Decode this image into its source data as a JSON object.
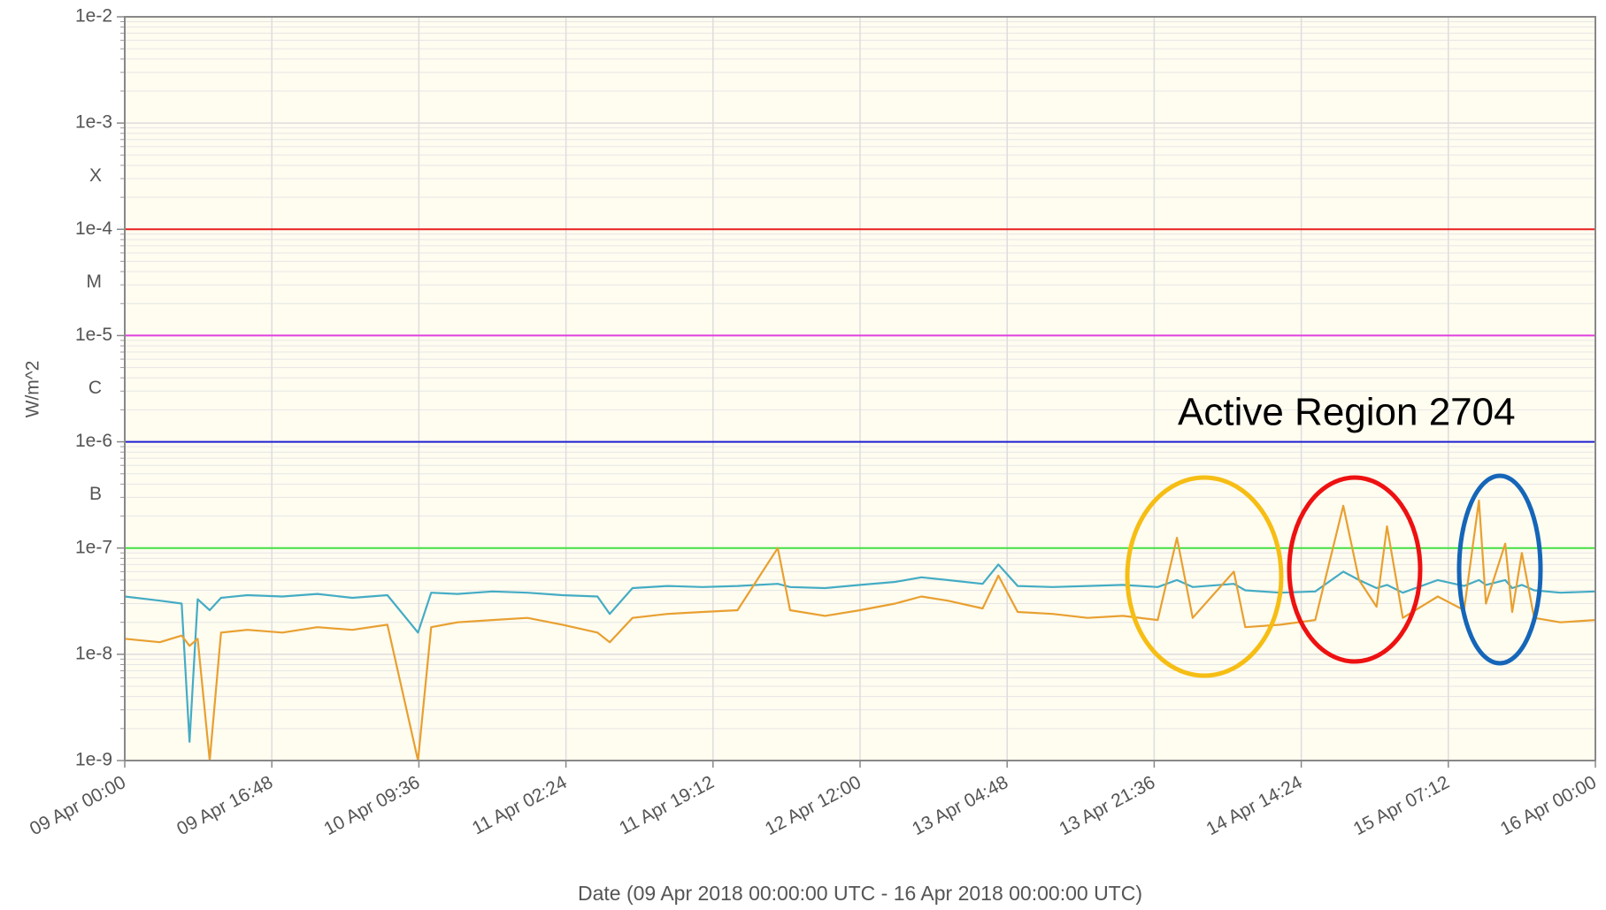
{
  "chart_data": {
    "type": "line",
    "ylabel": "W/m^2",
    "xlabel": "Date (09 Apr 2018 00:00:00 UTC - 16 Apr 2018 00:00:00 UTC)",
    "annotation": "Active Region 2704",
    "log_scale": true,
    "grid": true,
    "background": "#fffcf0",
    "xlim": [
      "2018-04-09T00:00Z",
      "2018-04-16T00:00Z"
    ],
    "xticks": [
      {
        "value": "2018-04-09T00:00Z",
        "label": "09 Apr 00:00"
      },
      {
        "value": "2018-04-09T16:48Z",
        "label": "09 Apr 16:48"
      },
      {
        "value": "2018-04-10T09:36Z",
        "label": "10 Apr 09:36"
      },
      {
        "value": "2018-04-11T02:24Z",
        "label": "11 Apr 02:24"
      },
      {
        "value": "2018-04-11T19:12Z",
        "label": "11 Apr 19:12"
      },
      {
        "value": "2018-04-12T12:00Z",
        "label": "12 Apr 12:00"
      },
      {
        "value": "2018-04-13T04:48Z",
        "label": "13 Apr 04:48"
      },
      {
        "value": "2018-04-13T21:36Z",
        "label": "13 Apr 21:36"
      },
      {
        "value": "2018-04-14T14:24Z",
        "label": "14 Apr 14:24"
      },
      {
        "value": "2018-04-15T07:12Z",
        "label": "15 Apr 07:12"
      },
      {
        "value": "2018-04-16T00:00Z",
        "label": "16 Apr 00:00"
      }
    ],
    "ylim": [
      1e-09,
      0.01
    ],
    "yticks": [
      {
        "value": 1e-09,
        "label": "1e-9"
      },
      {
        "value": 1e-08,
        "label": "1e-8"
      },
      {
        "value": 1e-07,
        "label": "1e-7"
      },
      {
        "value": 1e-06,
        "label": "1e-6"
      },
      {
        "value": 1e-05,
        "label": "1e-5"
      },
      {
        "value": 0.0001,
        "label": "1e-4"
      },
      {
        "value": 0.001,
        "label": "1e-3"
      },
      {
        "value": 0.01,
        "label": "1e-2"
      }
    ],
    "class_labels": [
      {
        "value": 3.16e-07,
        "label": "B"
      },
      {
        "value": 3.16e-06,
        "label": "C"
      },
      {
        "value": 3.16e-05,
        "label": "M"
      },
      {
        "value": 0.000316,
        "label": "X"
      }
    ],
    "thresholds": [
      {
        "value": 1e-07,
        "color": "#44e044"
      },
      {
        "value": 1e-06,
        "color": "#2020d0"
      },
      {
        "value": 1e-05,
        "color": "#e040e0"
      },
      {
        "value": 0.0001,
        "color": "#e82020"
      }
    ],
    "x": [
      "2018-04-09T00:00Z",
      "2018-04-09T04:00Z",
      "2018-04-09T06:30Z",
      "2018-04-09T07:24Z",
      "2018-04-09T08:20Z",
      "2018-04-09T09:42Z",
      "2018-04-09T11:00Z",
      "2018-04-09T14:00Z",
      "2018-04-09T18:00Z",
      "2018-04-09T22:00Z",
      "2018-04-10T02:00Z",
      "2018-04-10T06:00Z",
      "2018-04-10T09:30Z",
      "2018-04-10T11:00Z",
      "2018-04-10T14:00Z",
      "2018-04-10T18:00Z",
      "2018-04-10T22:00Z",
      "2018-04-11T02:00Z",
      "2018-04-11T06:00Z",
      "2018-04-11T07:24Z",
      "2018-04-11T10:00Z",
      "2018-04-11T14:00Z",
      "2018-04-11T18:00Z",
      "2018-04-11T22:00Z",
      "2018-04-12T02:36Z",
      "2018-04-12T04:00Z",
      "2018-04-12T08:00Z",
      "2018-04-12T12:00Z",
      "2018-04-12T16:00Z",
      "2018-04-12T19:00Z",
      "2018-04-12T22:00Z",
      "2018-04-13T02:00Z",
      "2018-04-13T03:48Z",
      "2018-04-13T06:00Z",
      "2018-04-13T10:00Z",
      "2018-04-13T14:00Z",
      "2018-04-13T18:00Z",
      "2018-04-13T22:00Z",
      "2018-04-14T00:12Z",
      "2018-04-14T02:00Z",
      "2018-04-14T06:42Z",
      "2018-04-14T08:00Z",
      "2018-04-14T12:00Z",
      "2018-04-14T16:00Z",
      "2018-04-14T19:12Z",
      "2018-04-14T21:00Z",
      "2018-04-14T23:00Z",
      "2018-04-15T00:12Z",
      "2018-04-15T02:00Z",
      "2018-04-15T06:00Z",
      "2018-04-15T09:00Z",
      "2018-04-15T10:42Z",
      "2018-04-15T11:30Z",
      "2018-04-15T13:42Z",
      "2018-04-15T14:30Z",
      "2018-04-15T15:36Z",
      "2018-04-15T17:00Z",
      "2018-04-15T20:00Z",
      "2018-04-16T00:00Z"
    ],
    "series": [
      {
        "color": "#44acc4",
        "values": [
          3.5e-08,
          3.2e-08,
          3e-08,
          1.5e-09,
          3.3e-08,
          2.6e-08,
          3.4e-08,
          3.6e-08,
          3.5e-08,
          3.7e-08,
          3.4e-08,
          3.6e-08,
          1.6e-08,
          3.8e-08,
          3.7e-08,
          3.9e-08,
          3.8e-08,
          3.6e-08,
          3.5e-08,
          2.4e-08,
          4.2e-08,
          4.4e-08,
          4.3e-08,
          4.4e-08,
          4.6e-08,
          4.3e-08,
          4.2e-08,
          4.5e-08,
          4.8e-08,
          5.3e-08,
          5e-08,
          4.6e-08,
          7e-08,
          4.4e-08,
          4.3e-08,
          4.4e-08,
          4.5e-08,
          4.3e-08,
          5e-08,
          4.3e-08,
          4.6e-08,
          4e-08,
          3.8e-08,
          3.9e-08,
          6e-08,
          5e-08,
          4.2e-08,
          4.5e-08,
          3.8e-08,
          5e-08,
          4.4e-08,
          5e-08,
          4.5e-08,
          5e-08,
          4.2e-08,
          4.5e-08,
          4e-08,
          3.8e-08,
          3.9e-08
        ]
      },
      {
        "color": "#e8a030",
        "values": [
          1.4e-08,
          1.3e-08,
          1.5e-08,
          1.2e-08,
          1.4e-08,
          1e-09,
          1.6e-08,
          1.7e-08,
          1.6e-08,
          1.8e-08,
          1.7e-08,
          1.9e-08,
          1e-09,
          1.8e-08,
          2e-08,
          2.1e-08,
          2.2e-08,
          1.9e-08,
          1.6e-08,
          1.3e-08,
          2.2e-08,
          2.4e-08,
          2.5e-08,
          2.6e-08,
          1e-07,
          2.6e-08,
          2.3e-08,
          2.6e-08,
          3e-08,
          3.5e-08,
          3.2e-08,
          2.7e-08,
          5.5e-08,
          2.5e-08,
          2.4e-08,
          2.2e-08,
          2.3e-08,
          2.1e-08,
          1.25e-07,
          2.2e-08,
          6e-08,
          1.8e-08,
          1.9e-08,
          2.1e-08,
          2.5e-07,
          5e-08,
          2.8e-08,
          1.6e-07,
          2.2e-08,
          3.5e-08,
          2.6e-08,
          2.8e-07,
          3e-08,
          1.1e-07,
          2.5e-08,
          9e-08,
          2.2e-08,
          2e-08,
          2.1e-08
        ]
      }
    ]
  }
}
